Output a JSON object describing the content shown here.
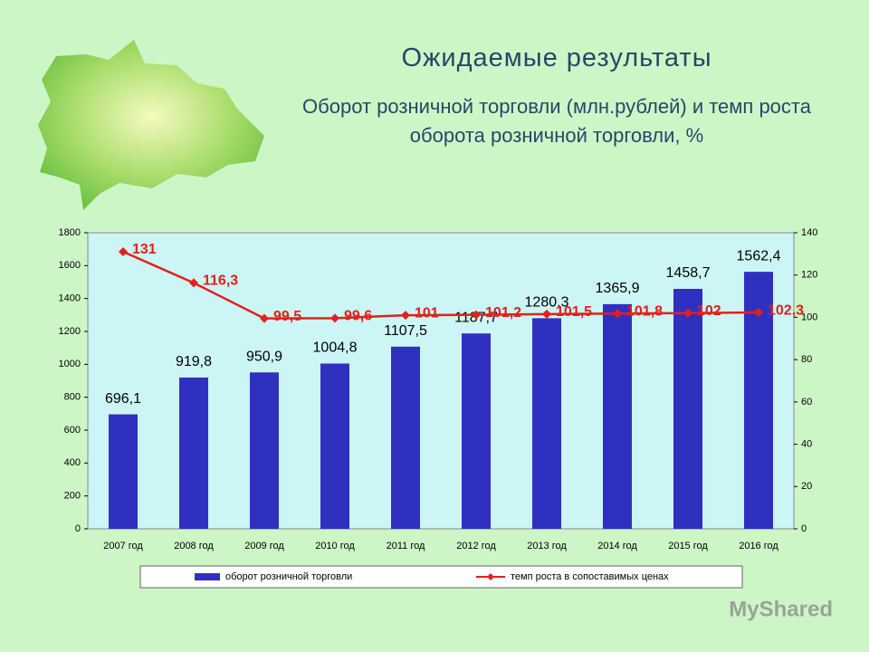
{
  "chart_data": {
    "type": "bar_line",
    "title": "Ожидаемые результаты",
    "subtitle": "Оборот розничной торговли (млн.рублей) и темп роста оборота розничной торговли, %",
    "categories": [
      "2007 год",
      "2008 год",
      "2009 год",
      "2010 год",
      "2011 год",
      "2012 год",
      "2013 год",
      "2014 год",
      "2015 год",
      "2016 год"
    ],
    "series": [
      {
        "name": "оборот розничной торговли",
        "type": "bar",
        "color": "#3030c0",
        "values": [
          696.1,
          919.8,
          950.9,
          1004.8,
          1107.5,
          1187.7,
          1280.3,
          1365.9,
          1458.7,
          1562.4
        ],
        "value_labels": [
          "696,1",
          "919,8",
          "950,9",
          "1004,8",
          "1107,5",
          "1187,7",
          "1280.3",
          "1365,9",
          "1458,7",
          "1562,4"
        ]
      },
      {
        "name": "темп роста в сопоставимых ценах",
        "type": "line",
        "axis": "y2",
        "color": "#e3201b",
        "values": [
          131,
          116.3,
          99.5,
          99.6,
          101,
          101.2,
          101.5,
          101.8,
          102,
          102.3
        ],
        "value_labels": [
          "131",
          "116,3",
          "99,5",
          "99,6",
          "101",
          "101,2",
          "101,5",
          "101,8",
          "102",
          "102,3"
        ]
      }
    ],
    "ylim": [
      0,
      1800
    ],
    "yticks": [
      0,
      200,
      400,
      600,
      800,
      1000,
      1200,
      1400,
      1600,
      1800
    ],
    "y2lim": [
      0,
      140
    ],
    "y2ticks": [
      0,
      20,
      40,
      60,
      80,
      100,
      120,
      140
    ],
    "legend": "bottom",
    "watermark": "MyShared"
  }
}
